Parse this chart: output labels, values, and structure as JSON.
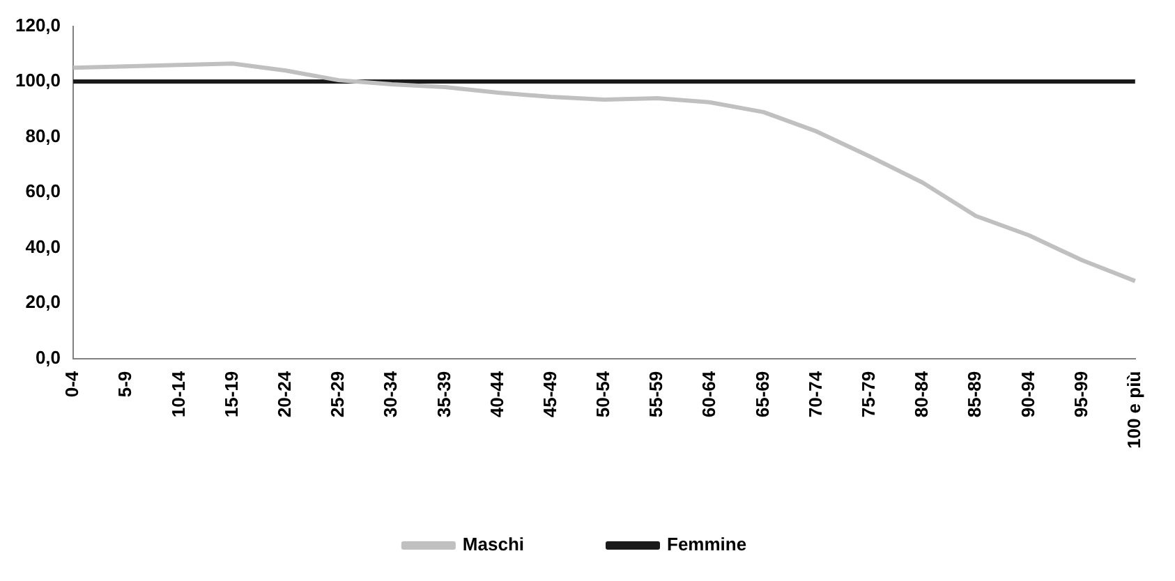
{
  "chart_data": {
    "type": "line",
    "categories": [
      "0-4",
      "5-9",
      "10-14",
      "15-19",
      "20-24",
      "25-29",
      "30-34",
      "35-39",
      "40-44",
      "45-49",
      "50-54",
      "55-59",
      "60-64",
      "65-69",
      "70-74",
      "75-79",
      "80-84",
      "85-89",
      "90-94",
      "95-99",
      "100 e più"
    ],
    "series": [
      {
        "name": "Maschi",
        "color": "#c0c0c0",
        "values": [
          105,
          105.5,
          106,
          106.5,
          104,
          100.5,
          99,
          98,
          96,
          94.5,
          93.5,
          94,
          92.5,
          89,
          82,
          73,
          63.5,
          51.5,
          44.5,
          35.5,
          28
        ]
      },
      {
        "name": "Femmine",
        "color": "#1a1a1a",
        "values": [
          100,
          100,
          100,
          100,
          100,
          100,
          100,
          100,
          100,
          100,
          100,
          100,
          100,
          100,
          100,
          100,
          100,
          100,
          100,
          100,
          100
        ]
      }
    ],
    "ylim": [
      0,
      120
    ],
    "yticks": [
      {
        "value": 0,
        "label": "0,0"
      },
      {
        "value": 20,
        "label": "20,0"
      },
      {
        "value": 40,
        "label": "40,0"
      },
      {
        "value": 60,
        "label": "60,0"
      },
      {
        "value": 80,
        "label": "80,0"
      },
      {
        "value": 100,
        "label": "100,0"
      },
      {
        "value": 120,
        "label": "120,0"
      }
    ],
    "grid": false,
    "legend": "bottom",
    "marker": "none",
    "line_style": "solid"
  }
}
